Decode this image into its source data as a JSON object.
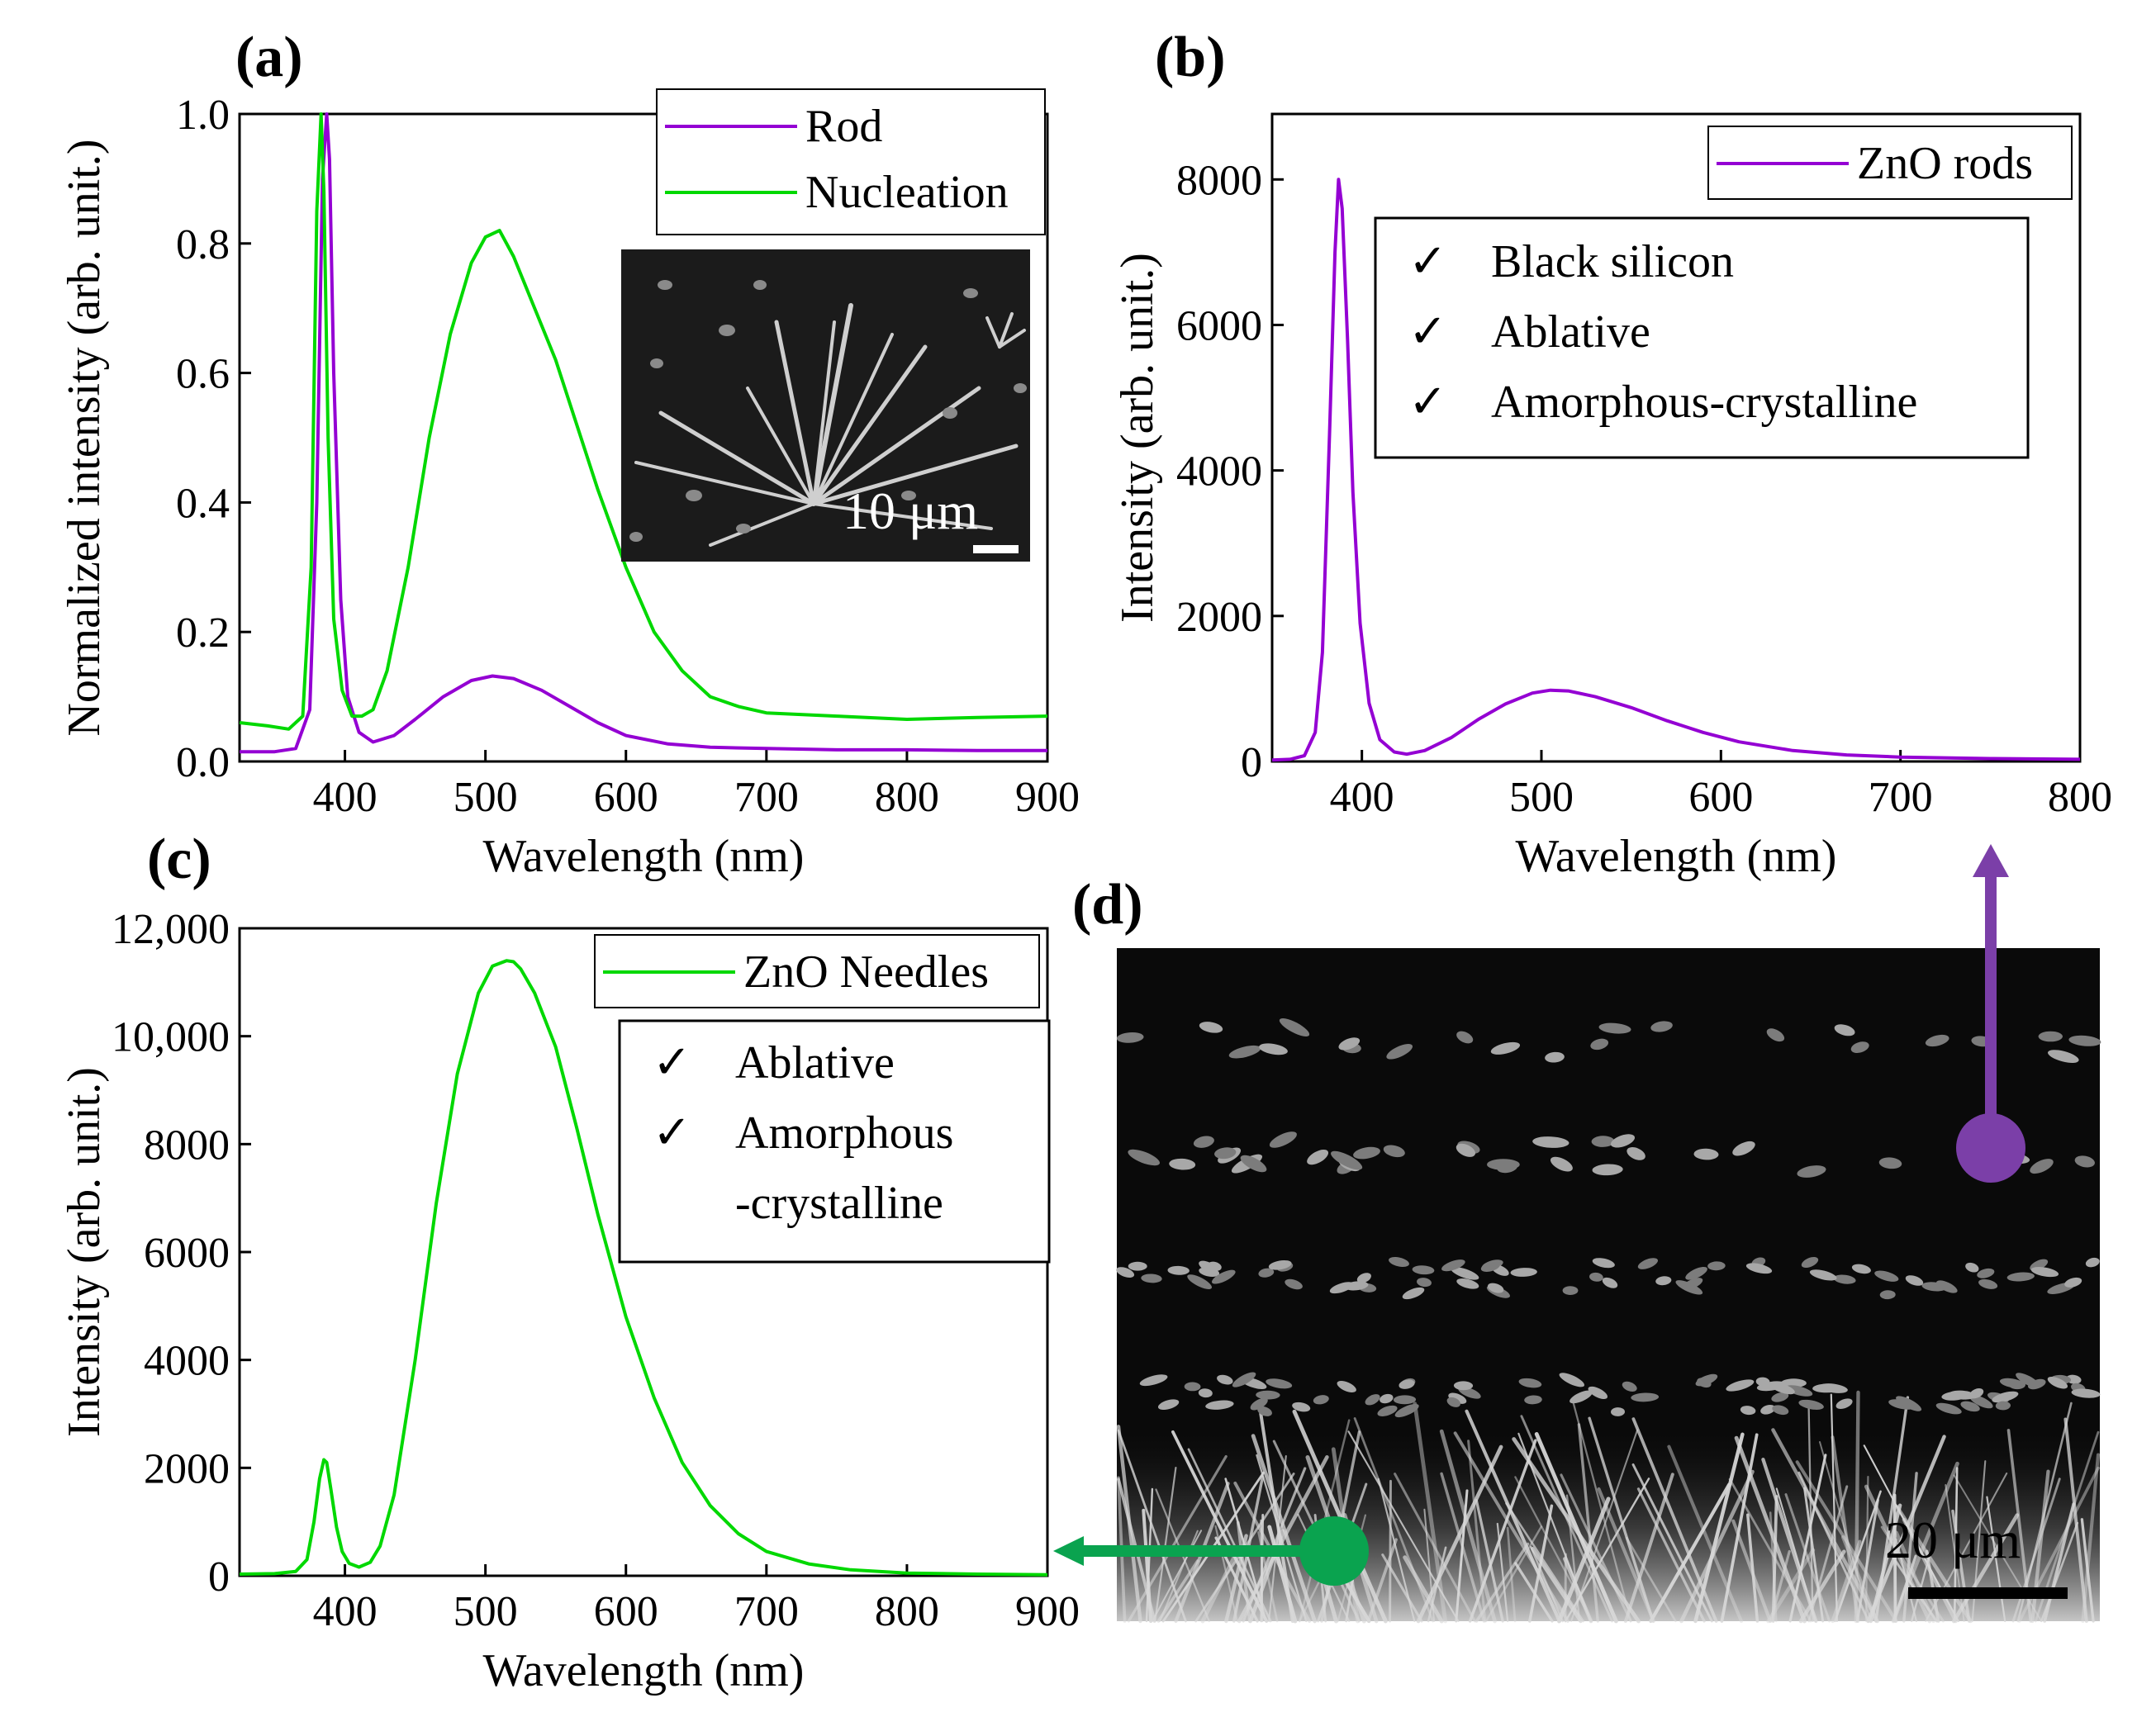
{
  "colors": {
    "purple": "#9400d3",
    "green": "#00d800",
    "arrow_purple": "#7b3fa8",
    "arrow_green": "#0aa34f"
  },
  "panels": {
    "a": {
      "label": "(a)"
    },
    "b": {
      "label": "(b)"
    },
    "c": {
      "label": "(c)"
    },
    "d": {
      "label": "(d)",
      "scale_bar": "20 μm"
    }
  },
  "inset_a": {
    "scale_bar": "10 μm"
  },
  "chart_data": [
    {
      "id": "a",
      "type": "line",
      "xlabel": "Wavelength (nm)",
      "ylabel": "Normalized intensity (arb. unit.)",
      "xlim": [
        325,
        900
      ],
      "ylim": [
        0,
        1.0
      ],
      "xticks": [
        400,
        500,
        600,
        700,
        800,
        900
      ],
      "xtick_labels": [
        "400",
        "500",
        "600",
        "700",
        "800",
        "900"
      ],
      "yticks": [
        0,
        0.2,
        0.4,
        0.6,
        0.8,
        1.0
      ],
      "ytick_labels": [
        "0.0",
        "0.2",
        "0.4",
        "0.6",
        "0.8",
        "1.0"
      ],
      "legend_position": "top-right",
      "series": [
        {
          "name": "Rod",
          "color": "#9400d3",
          "x": [
            325,
            350,
            365,
            375,
            380,
            384,
            387,
            389,
            392,
            397,
            402,
            410,
            420,
            435,
            450,
            470,
            490,
            505,
            520,
            540,
            560,
            580,
            600,
            630,
            660,
            700,
            750,
            800,
            850,
            900
          ],
          "y": [
            0.015,
            0.015,
            0.02,
            0.08,
            0.4,
            0.9,
            1.0,
            0.93,
            0.6,
            0.25,
            0.1,
            0.045,
            0.03,
            0.04,
            0.065,
            0.1,
            0.125,
            0.132,
            0.128,
            0.11,
            0.085,
            0.06,
            0.04,
            0.027,
            0.022,
            0.02,
            0.018,
            0.018,
            0.017,
            0.017
          ]
        },
        {
          "name": "Nucleation",
          "color": "#00d800",
          "x": [
            325,
            345,
            360,
            370,
            376,
            380,
            383,
            385,
            388,
            392,
            398,
            405,
            412,
            420,
            430,
            445,
            460,
            475,
            490,
            500,
            510,
            520,
            535,
            550,
            565,
            580,
            600,
            620,
            640,
            660,
            680,
            700,
            750,
            800,
            850,
            900
          ],
          "y": [
            0.06,
            0.055,
            0.05,
            0.07,
            0.3,
            0.85,
            1.0,
            0.88,
            0.5,
            0.22,
            0.11,
            0.07,
            0.07,
            0.08,
            0.14,
            0.3,
            0.5,
            0.66,
            0.77,
            0.81,
            0.82,
            0.78,
            0.7,
            0.62,
            0.52,
            0.42,
            0.3,
            0.2,
            0.14,
            0.1,
            0.085,
            0.075,
            0.07,
            0.065,
            0.068,
            0.07
          ]
        }
      ]
    },
    {
      "id": "b",
      "type": "line",
      "xlabel": "Wavelength (nm)",
      "ylabel": "Intensity (arb. unit.)",
      "xlim": [
        350,
        800
      ],
      "ylim": [
        0,
        8900
      ],
      "xticks": [
        400,
        500,
        600,
        700,
        800
      ],
      "xtick_labels": [
        "400",
        "500",
        "600",
        "700",
        "800"
      ],
      "yticks": [
        0,
        2000,
        4000,
        6000,
        8000
      ],
      "ytick_labels": [
        "0",
        "2000",
        "4000",
        "6000",
        "8000"
      ],
      "legend_position": "top-right",
      "annotation_items": [
        "Black silicon",
        "Ablative",
        "Amorphous-crystalline"
      ],
      "series": [
        {
          "name": "ZnO rods",
          "color": "#9400d3",
          "x": [
            350,
            360,
            368,
            374,
            378,
            382,
            385,
            387,
            389,
            392,
            395,
            399,
            404,
            410,
            418,
            425,
            435,
            450,
            465,
            480,
            495,
            505,
            515,
            530,
            550,
            570,
            590,
            610,
            640,
            670,
            700,
            750,
            800
          ],
          "y": [
            20,
            30,
            80,
            400,
            1500,
            4500,
            7000,
            8000,
            7600,
            5800,
            3700,
            1900,
            800,
            300,
            130,
            100,
            150,
            330,
            580,
            790,
            940,
            980,
            970,
            890,
            740,
            560,
            400,
            270,
            150,
            90,
            60,
            40,
            30
          ]
        }
      ]
    },
    {
      "id": "c",
      "type": "line",
      "xlabel": "Wavelength (nm)",
      "ylabel": "Intensity (arb. unit.)",
      "xlim": [
        325,
        900
      ],
      "ylim": [
        0,
        12000
      ],
      "xticks": [
        400,
        500,
        600,
        700,
        800,
        900
      ],
      "xtick_labels": [
        "400",
        "500",
        "600",
        "700",
        "800",
        "900"
      ],
      "yticks": [
        0,
        2000,
        4000,
        6000,
        8000,
        10000,
        12000
      ],
      "ytick_labels": [
        "0",
        "2000",
        "4000",
        "6000",
        "8000",
        "10,000",
        "12,000"
      ],
      "legend_position": "top-right",
      "annotation_items": [
        "Ablative",
        "Amorphous",
        "-crystalline"
      ],
      "series": [
        {
          "name": "ZnO Needles",
          "color": "#00d800",
          "x": [
            325,
            350,
            365,
            373,
            378,
            382,
            385,
            387,
            390,
            394,
            398,
            403,
            410,
            418,
            425,
            435,
            450,
            465,
            480,
            495,
            505,
            515,
            520,
            525,
            535,
            550,
            565,
            580,
            600,
            620,
            640,
            660,
            680,
            700,
            730,
            760,
            800,
            850,
            900
          ],
          "y": [
            30,
            40,
            80,
            300,
            1000,
            1800,
            2150,
            2100,
            1600,
            900,
            450,
            230,
            160,
            250,
            550,
            1500,
            4000,
            6900,
            9300,
            10800,
            11300,
            11400,
            11380,
            11250,
            10800,
            9800,
            8300,
            6700,
            4800,
            3300,
            2100,
            1300,
            780,
            450,
            220,
            110,
            50,
            30,
            20
          ]
        }
      ]
    }
  ]
}
